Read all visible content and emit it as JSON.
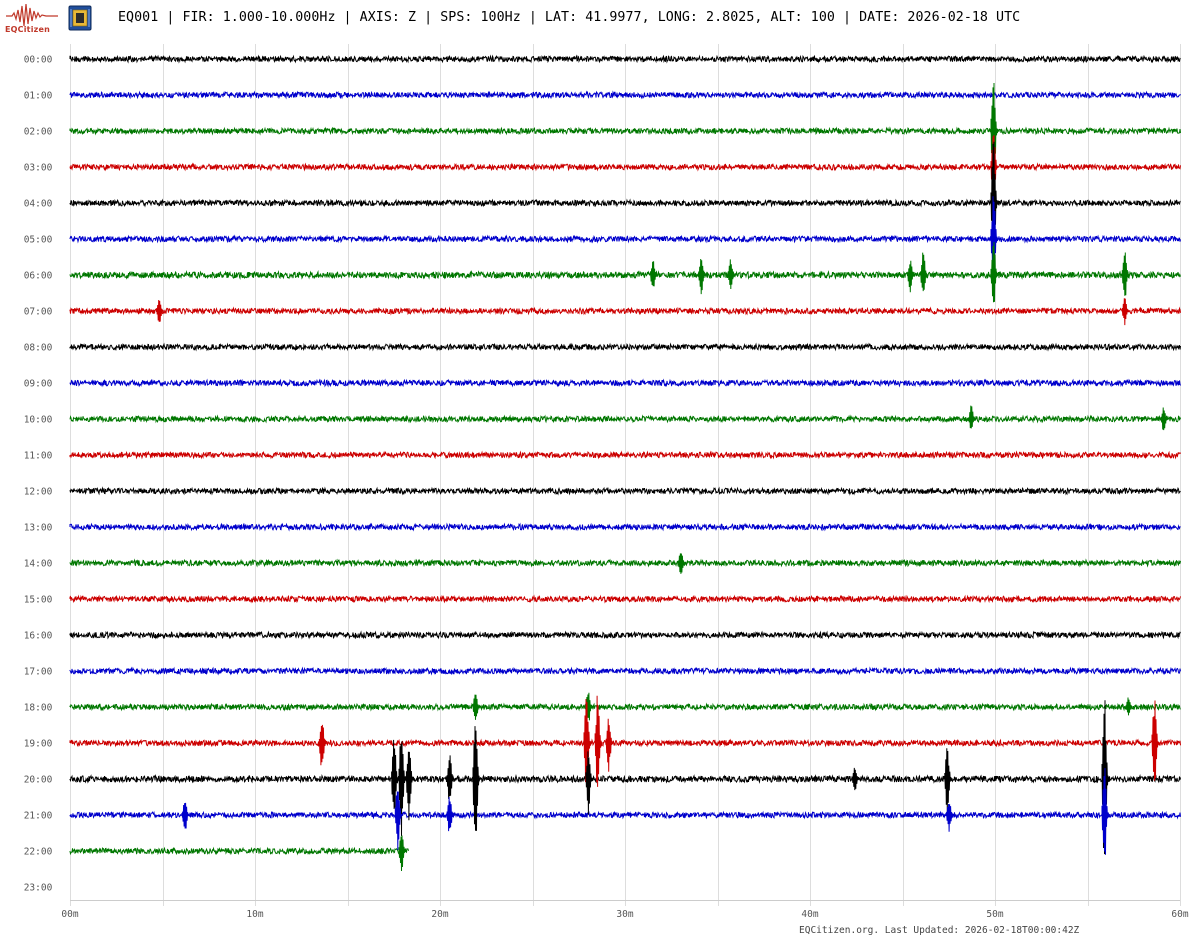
{
  "header": {
    "logo_text": "EQCitizen",
    "station_info": "EQ001 | FIR: 1.000-10.000Hz | AXIS: Z | SPS: 100Hz | LAT: 41.9977, LONG: 2.8025, ALT: 100 | DATE: 2026-02-18 UTC"
  },
  "footer": {
    "updated": "EQCitizen.org. Last Updated: 2026-02-18T00:00:42Z"
  },
  "colors": {
    "trace_cycle": [
      "#000000",
      "#0000cc",
      "#007700",
      "#cc0000"
    ],
    "grid": "#dddddd",
    "axis_text": "#555555",
    "logo": "#c0392b"
  },
  "chart_data": {
    "type": "line",
    "title": "",
    "xlabel": "",
    "ylabel": "",
    "x_unit": "minutes",
    "xlim": [
      0,
      60
    ],
    "x_ticks": [
      0,
      10,
      20,
      30,
      40,
      50,
      60
    ],
    "x_tick_labels": [
      "00m",
      "10m",
      "20m",
      "30m",
      "40m",
      "50m",
      "60m"
    ],
    "x_minor_grid_step": 5,
    "grid": true,
    "row_labels": [
      "00:00",
      "01:00",
      "02:00",
      "03:00",
      "04:00",
      "05:00",
      "06:00",
      "07:00",
      "08:00",
      "09:00",
      "10:00",
      "11:00",
      "12:00",
      "13:00",
      "14:00",
      "15:00",
      "16:00",
      "17:00",
      "18:00",
      "19:00",
      "20:00",
      "21:00",
      "22:00",
      "23:00"
    ],
    "rows": [
      {
        "hour": "00:00",
        "color": "#000000",
        "end_minute": 60,
        "noise": 0.22,
        "spikes": []
      },
      {
        "hour": "01:00",
        "color": "#0000cc",
        "end_minute": 60,
        "noise": 0.22,
        "spikes": []
      },
      {
        "hour": "02:00",
        "color": "#007700",
        "end_minute": 60,
        "noise": 0.22,
        "spikes": [
          {
            "minute": 50.0,
            "amp": 1.8
          }
        ]
      },
      {
        "hour": "03:00",
        "color": "#cc0000",
        "end_minute": 60,
        "noise": 0.22,
        "spikes": [
          {
            "minute": 50.0,
            "amp": 1.0
          }
        ]
      },
      {
        "hour": "04:00",
        "color": "#000000",
        "end_minute": 60,
        "noise": 0.22,
        "spikes": [
          {
            "minute": 50.0,
            "amp": 2.0
          }
        ]
      },
      {
        "hour": "05:00",
        "color": "#0000cc",
        "end_minute": 60,
        "noise": 0.22,
        "spikes": [
          {
            "minute": 50.0,
            "amp": 1.4
          }
        ]
      },
      {
        "hour": "06:00",
        "color": "#007700",
        "end_minute": 60,
        "noise": 0.25,
        "spikes": [
          {
            "minute": 31.6,
            "amp": 0.5
          },
          {
            "minute": 34.2,
            "amp": 0.6
          },
          {
            "minute": 35.8,
            "amp": 0.5
          },
          {
            "minute": 45.5,
            "amp": 0.5
          },
          {
            "minute": 46.2,
            "amp": 0.7
          },
          {
            "minute": 50.0,
            "amp": 1.0
          },
          {
            "minute": 57.1,
            "amp": 0.8
          }
        ]
      },
      {
        "hour": "07:00",
        "color": "#cc0000",
        "end_minute": 60,
        "noise": 0.22,
        "spikes": [
          {
            "minute": 4.9,
            "amp": 0.4
          },
          {
            "minute": 57.1,
            "amp": 0.4
          }
        ]
      },
      {
        "hour": "08:00",
        "color": "#000000",
        "end_minute": 60,
        "noise": 0.22,
        "spikes": []
      },
      {
        "hour": "09:00",
        "color": "#0000cc",
        "end_minute": 60,
        "noise": 0.22,
        "spikes": []
      },
      {
        "hour": "10:00",
        "color": "#007700",
        "end_minute": 60,
        "noise": 0.22,
        "spikes": [
          {
            "minute": 48.8,
            "amp": 0.4
          },
          {
            "minute": 59.2,
            "amp": 0.4
          }
        ]
      },
      {
        "hour": "11:00",
        "color": "#cc0000",
        "end_minute": 60,
        "noise": 0.22,
        "spikes": []
      },
      {
        "hour": "12:00",
        "color": "#000000",
        "end_minute": 60,
        "noise": 0.22,
        "spikes": []
      },
      {
        "hour": "13:00",
        "color": "#0000cc",
        "end_minute": 60,
        "noise": 0.22,
        "spikes": []
      },
      {
        "hour": "14:00",
        "color": "#007700",
        "end_minute": 60,
        "noise": 0.22,
        "spikes": [
          {
            "minute": 33.1,
            "amp": 0.4
          }
        ]
      },
      {
        "hour": "15:00",
        "color": "#cc0000",
        "end_minute": 60,
        "noise": 0.22,
        "spikes": []
      },
      {
        "hour": "16:00",
        "color": "#000000",
        "end_minute": 60,
        "noise": 0.22,
        "spikes": []
      },
      {
        "hour": "17:00",
        "color": "#0000cc",
        "end_minute": 60,
        "noise": 0.22,
        "spikes": []
      },
      {
        "hour": "18:00",
        "color": "#007700",
        "end_minute": 60,
        "noise": 0.22,
        "spikes": [
          {
            "minute": 22.0,
            "amp": 0.5
          },
          {
            "minute": 28.1,
            "amp": 0.5
          },
          {
            "minute": 57.3,
            "amp": 0.3
          }
        ]
      },
      {
        "hour": "19:00",
        "color": "#cc0000",
        "end_minute": 60,
        "noise": 0.22,
        "spikes": [
          {
            "minute": 13.7,
            "amp": 0.8
          },
          {
            "minute": 28.0,
            "amp": 1.5
          },
          {
            "minute": 28.6,
            "amp": 1.4
          },
          {
            "minute": 29.2,
            "amp": 0.8
          },
          {
            "minute": 58.7,
            "amp": 1.3
          }
        ]
      },
      {
        "hour": "20:00",
        "color": "#000000",
        "end_minute": 60,
        "noise": 0.25,
        "spikes": [
          {
            "minute": 17.6,
            "amp": 1.3
          },
          {
            "minute": 18.0,
            "amp": 1.6
          },
          {
            "minute": 18.4,
            "amp": 1.2
          },
          {
            "minute": 20.6,
            "amp": 0.8
          },
          {
            "minute": 22.0,
            "amp": 2.3
          },
          {
            "minute": 28.1,
            "amp": 1.0
          },
          {
            "minute": 42.5,
            "amp": 0.4
          },
          {
            "minute": 47.5,
            "amp": 1.0
          },
          {
            "minute": 56.0,
            "amp": 2.5
          }
        ]
      },
      {
        "hour": "21:00",
        "color": "#0000cc",
        "end_minute": 60,
        "noise": 0.22,
        "spikes": [
          {
            "minute": 6.3,
            "amp": 0.5
          },
          {
            "minute": 17.8,
            "amp": 1.0
          },
          {
            "minute": 20.6,
            "amp": 0.6
          },
          {
            "minute": 47.6,
            "amp": 0.5
          },
          {
            "minute": 56.0,
            "amp": 1.5
          }
        ]
      },
      {
        "hour": "22:00",
        "color": "#007700",
        "end_minute": 18.3,
        "noise": 0.22,
        "spikes": [
          {
            "minute": 18.0,
            "amp": 0.6
          }
        ]
      },
      {
        "hour": "23:00",
        "color": "#000000",
        "end_minute": 0,
        "noise": 0.0,
        "spikes": []
      }
    ]
  }
}
